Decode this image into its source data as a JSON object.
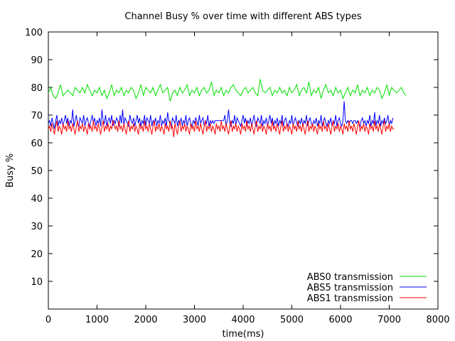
{
  "chart_data": {
    "type": "line",
    "title": "Channel Busy % over time with different ABS types",
    "xlabel": "time(ms)",
    "ylabel": "Busy %",
    "xlim": [
      0,
      8000
    ],
    "ylim": [
      0,
      100
    ],
    "xticks": [
      0,
      1000,
      2000,
      3000,
      4000,
      5000,
      6000,
      7000,
      8000
    ],
    "yticks": [
      10,
      20,
      30,
      40,
      50,
      60,
      70,
      80,
      90,
      100
    ],
    "grid": false,
    "legend": "bottom-right",
    "series": [
      {
        "name": "ABS0 transmission",
        "color": "#00e000",
        "x_start": 0,
        "x_step": 50,
        "values": [
          78,
          80,
          77,
          76,
          78,
          81,
          77,
          78,
          79,
          78,
          77,
          80,
          79,
          78,
          80,
          78,
          81,
          79,
          77,
          79,
          78,
          80,
          77,
          79,
          76,
          78,
          81,
          77,
          79,
          78,
          80,
          77,
          79,
          78,
          80,
          79,
          76,
          78,
          81,
          77,
          80,
          79,
          78,
          80,
          77,
          79,
          81,
          78,
          79,
          80,
          75,
          78,
          79,
          77,
          80,
          78,
          79,
          81,
          77,
          79,
          78,
          80,
          77,
          79,
          80,
          78,
          79,
          82,
          77,
          79,
          78,
          80,
          77,
          79,
          78,
          80,
          81,
          79,
          78,
          77,
          79,
          80,
          78,
          79,
          80,
          78,
          77,
          83,
          79,
          78,
          79,
          80,
          77,
          79,
          78,
          80,
          78,
          79,
          77,
          80,
          78,
          79,
          81,
          77,
          79,
          80,
          78,
          82,
          77,
          79,
          78,
          80,
          76,
          79,
          81,
          78,
          79,
          77,
          80,
          78,
          79,
          76,
          78,
          80,
          77,
          79,
          78,
          81,
          77,
          79,
          78,
          80,
          77,
          79,
          78,
          80,
          79,
          76,
          78,
          81,
          77,
          80,
          79,
          78,
          79,
          80,
          78,
          77
        ]
      },
      {
        "name": "ABS5 transmission",
        "color": "#0000ff",
        "x_start": 0,
        "x_step": 25,
        "values": [
          67,
          68,
          66,
          69,
          67,
          65,
          68,
          70,
          66,
          68,
          67,
          69,
          66,
          68,
          70,
          67,
          69,
          66,
          68,
          67,
          72,
          66,
          68,
          70,
          67,
          66,
          69,
          68,
          67,
          70,
          66,
          68,
          69,
          67,
          66,
          68,
          70,
          67,
          69,
          66,
          68,
          67,
          69,
          66,
          72,
          68,
          67,
          70,
          66,
          68,
          69,
          67,
          70,
          66,
          68,
          67,
          69,
          68,
          66,
          70,
          67,
          72,
          66,
          69,
          68,
          67,
          66,
          70,
          68,
          67,
          69,
          66,
          68,
          70,
          67,
          69,
          66,
          68,
          67,
          70,
          66,
          69,
          68,
          67,
          70,
          66,
          68,
          67,
          69,
          66,
          68,
          67,
          70,
          66,
          68,
          67,
          69,
          66,
          71,
          68,
          67,
          66,
          69,
          68,
          67,
          70,
          66,
          68,
          67,
          69,
          66,
          68,
          67,
          70,
          66,
          68,
          69,
          67,
          66,
          68,
          67,
          69,
          68,
          66,
          70,
          67,
          68,
          69,
          66,
          68,
          67,
          70,
          66,
          68,
          67,
          68,
          67,
          68,
          68,
          68,
          68,
          68,
          68,
          68,
          68,
          70,
          66,
          68,
          72,
          67,
          66,
          68,
          67,
          70,
          66,
          69,
          68,
          67,
          66,
          68,
          70,
          67,
          69,
          66,
          68,
          67,
          69,
          66,
          68,
          70,
          67,
          66,
          69,
          68,
          67,
          70,
          66,
          68,
          67,
          69,
          66,
          68,
          70,
          67,
          69,
          66,
          68,
          67,
          69,
          66,
          68,
          67,
          70,
          66,
          68,
          69,
          67,
          66,
          68,
          67,
          70,
          66,
          68,
          69,
          67,
          66,
          68,
          67,
          69,
          66,
          68,
          67,
          70,
          66,
          68,
          69,
          67,
          66,
          68,
          67,
          69,
          66,
          68,
          67,
          70,
          66,
          68,
          69,
          67,
          66,
          68,
          67,
          69,
          66,
          68,
          67,
          70,
          66,
          68,
          69,
          67,
          66,
          68,
          75,
          68,
          67,
          68,
          67,
          68,
          68,
          67,
          68,
          68,
          67,
          68,
          67,
          66,
          68,
          69,
          67,
          68,
          66,
          68,
          67,
          70,
          66,
          68,
          67,
          71,
          66,
          68,
          67,
          70,
          66,
          68,
          67,
          69,
          67,
          68,
          70,
          66,
          68,
          67,
          69
        ]
      },
      {
        "name": "ABS1 transmission",
        "color": "#ff0000",
        "x_start": 0,
        "x_step": 25,
        "values": [
          65,
          66,
          64,
          67,
          65,
          63,
          66,
          68,
          64,
          66,
          65,
          63,
          67,
          65,
          66,
          64,
          68,
          65,
          66,
          64,
          67,
          65,
          63,
          66,
          68,
          64,
          66,
          65,
          67,
          64,
          66,
          65,
          63,
          67,
          65,
          66,
          64,
          68,
          65,
          66,
          64,
          67,
          65,
          63,
          66,
          68,
          64,
          66,
          65,
          67,
          64,
          66,
          65,
          68,
          67,
          65,
          66,
          64,
          68,
          65,
          66,
          64,
          67,
          65,
          63,
          66,
          68,
          64,
          66,
          65,
          67,
          64,
          66,
          65,
          63,
          67,
          65,
          66,
          64,
          68,
          65,
          66,
          64,
          67,
          65,
          63,
          66,
          68,
          64,
          66,
          65,
          67,
          64,
          66,
          65,
          63,
          67,
          65,
          66,
          64,
          68,
          65,
          66,
          62,
          67,
          65,
          63,
          66,
          68,
          64,
          66,
          65,
          67,
          64,
          66,
          65,
          63,
          67,
          65,
          66,
          64,
          68,
          65,
          66,
          64,
          67,
          65,
          63,
          66,
          68,
          64,
          66,
          65,
          67,
          64,
          66,
          65,
          63,
          67,
          65,
          66,
          64,
          68,
          65,
          66,
          64,
          67,
          65,
          63,
          66,
          68,
          64,
          66,
          65,
          67,
          64,
          66,
          65,
          63,
          67,
          65,
          66,
          64,
          68,
          65,
          66,
          64,
          67,
          65,
          63,
          66,
          68,
          64,
          66,
          65,
          67,
          64,
          66,
          65,
          63,
          67,
          65,
          66,
          64,
          68,
          65,
          66,
          64,
          67,
          65,
          63,
          66,
          68,
          64,
          66,
          65,
          67,
          64,
          66,
          65,
          63,
          67,
          65,
          66,
          64,
          68,
          65,
          66,
          64,
          67,
          65,
          63,
          66,
          68,
          64,
          66,
          65,
          67,
          64,
          66,
          65,
          63,
          67,
          65,
          66,
          64,
          68,
          65,
          66,
          64,
          67,
          65,
          63,
          66,
          68,
          64,
          66,
          65,
          67,
          64,
          66,
          65,
          63,
          67,
          65,
          66,
          64,
          68,
          65,
          66,
          64,
          67,
          65,
          63,
          66,
          68,
          64,
          66,
          65,
          67,
          64,
          66,
          65,
          63,
          67,
          65,
          66,
          64,
          68,
          65,
          66,
          64,
          67,
          65,
          63,
          66,
          68,
          64,
          66,
          65,
          67,
          64,
          66,
          65,
          65
        ]
      }
    ]
  }
}
